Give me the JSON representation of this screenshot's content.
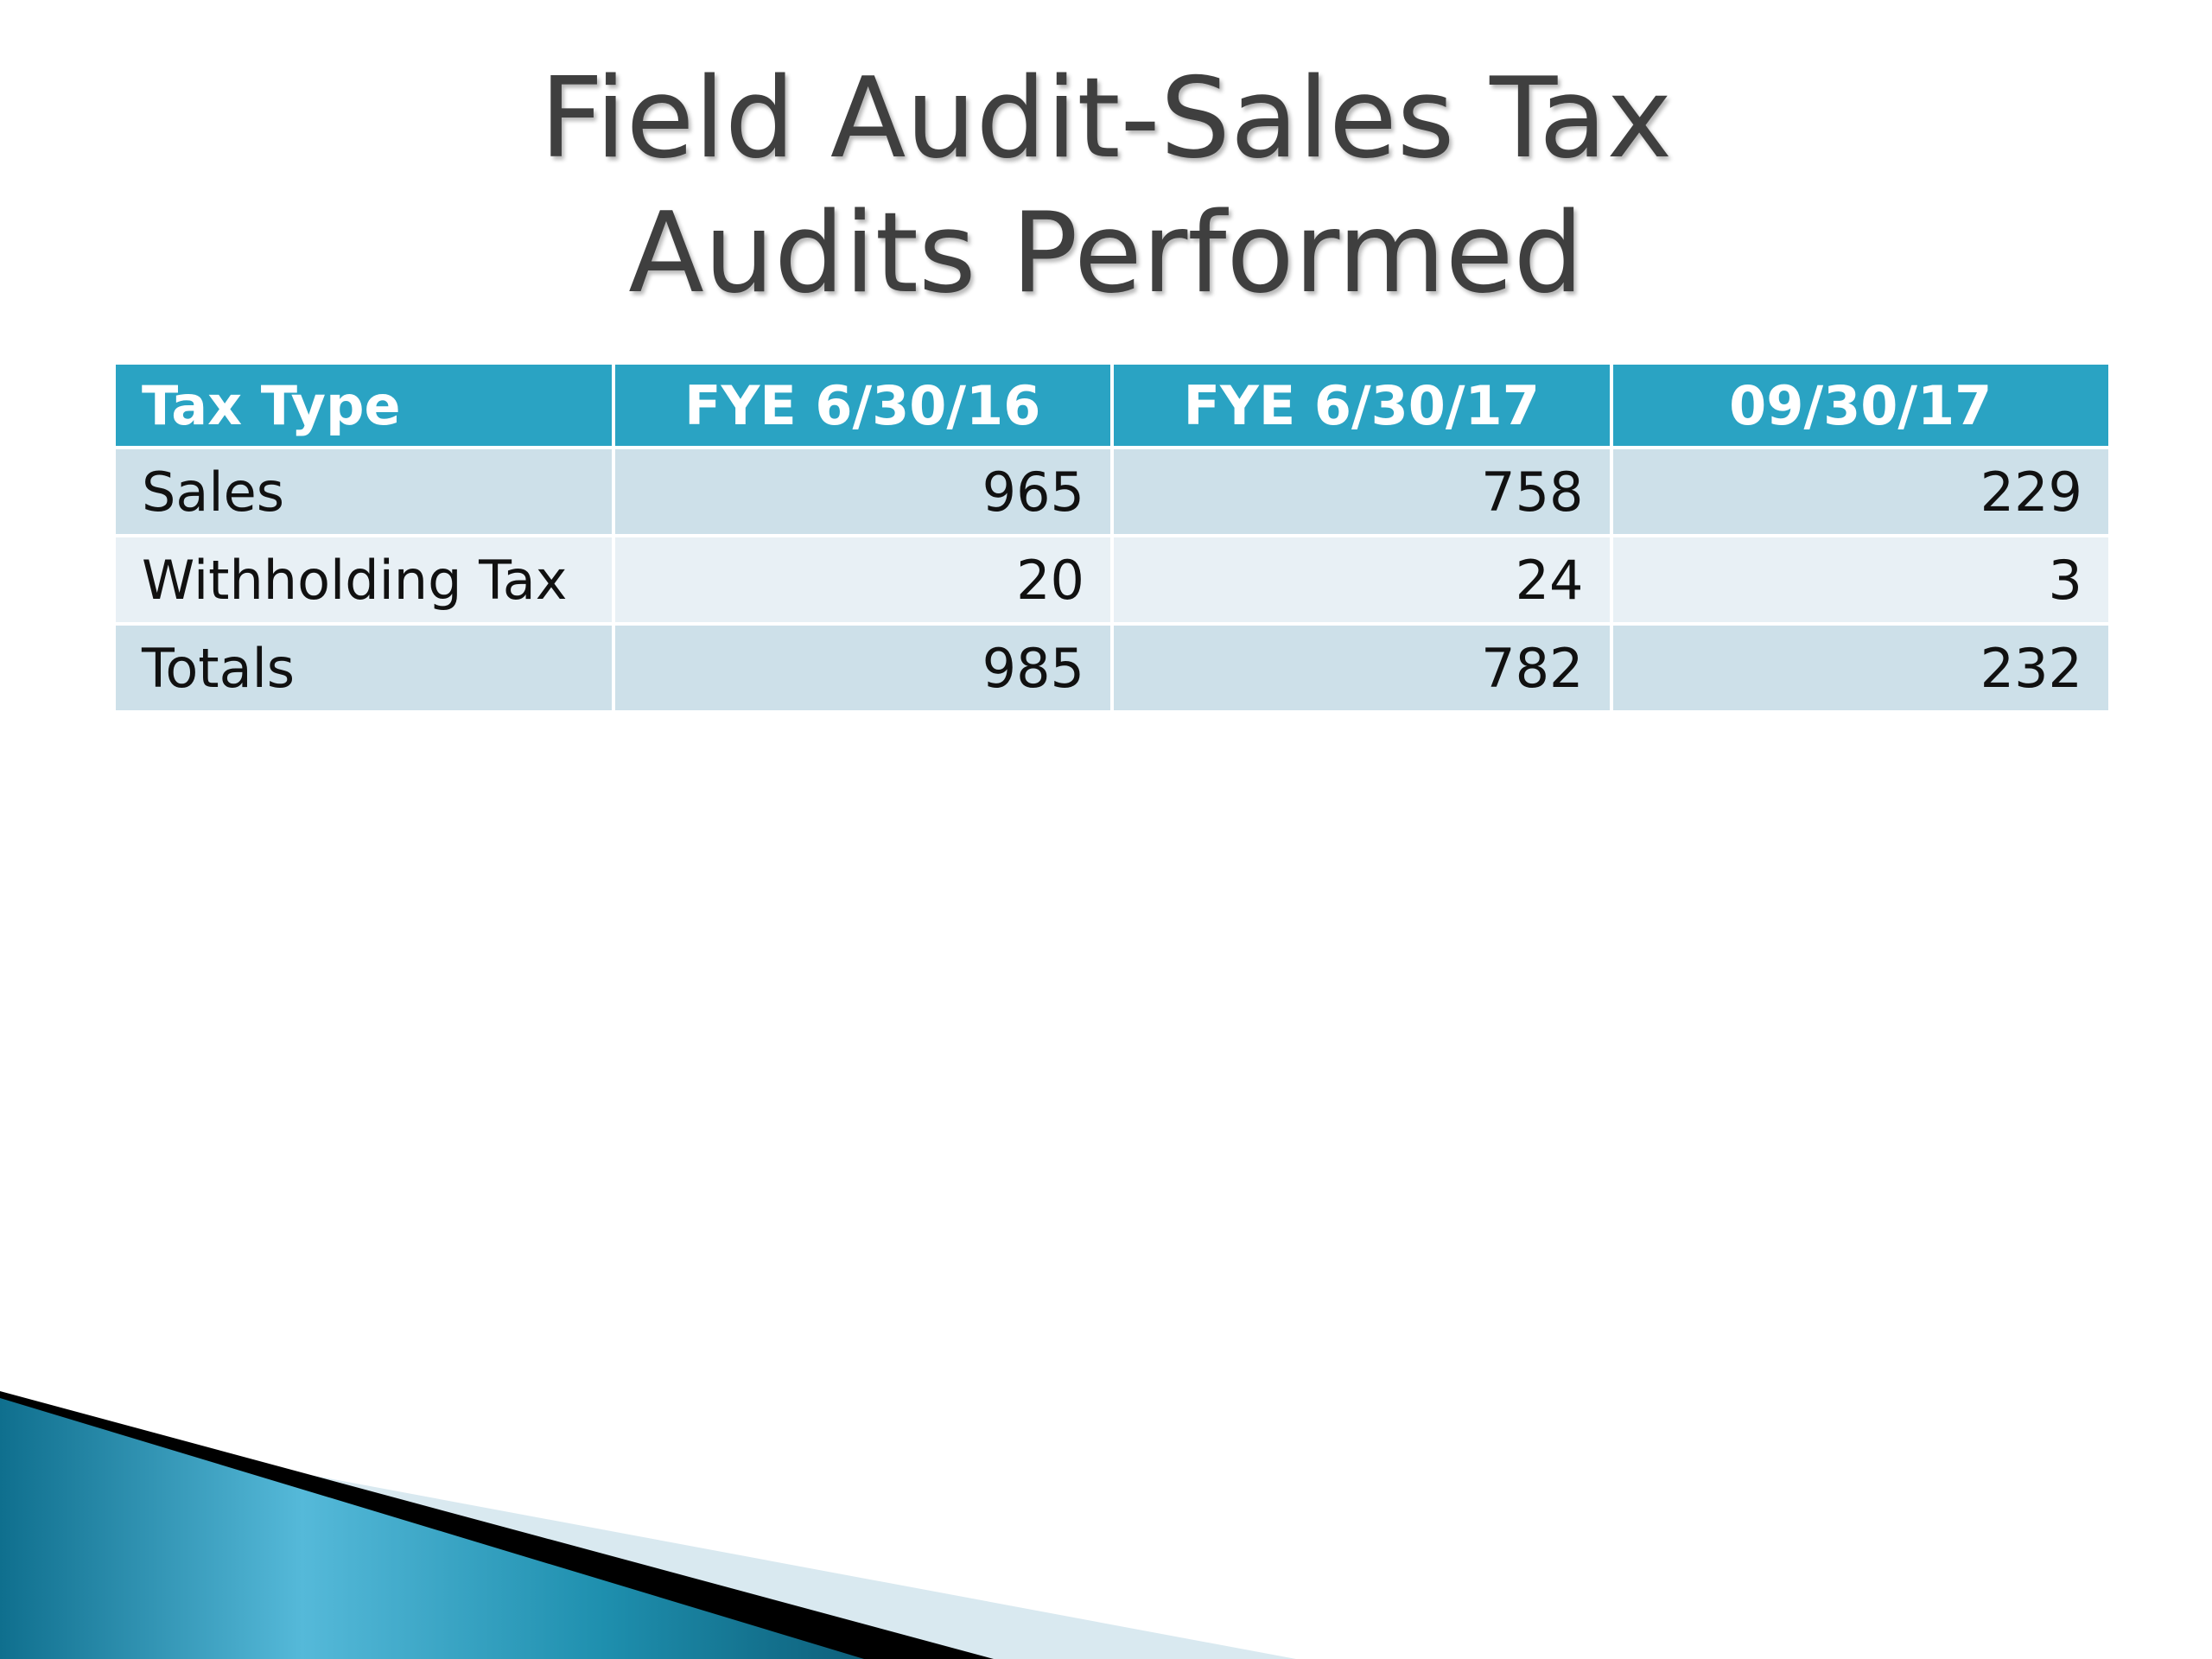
{
  "slide": {
    "title_line1": "Field Audit-Sales Tax",
    "title_line2": "Audits Performed"
  },
  "table": {
    "headers": [
      "Tax Type",
      "FYE 6/30/16",
      "FYE 6/30/17",
      "09/30/17"
    ],
    "rows": [
      {
        "label": "Sales",
        "values": [
          "965",
          "758",
          "229"
        ]
      },
      {
        "label": "Withholding Tax",
        "values": [
          "20",
          "24",
          "3"
        ]
      },
      {
        "label": "Totals",
        "values": [
          "985",
          "782",
          "232"
        ]
      }
    ]
  },
  "colors": {
    "header_background": "#2aa3c3",
    "row_dark": "#cde0e9",
    "row_light": "#e8f0f5",
    "accent_teal": "#1e8fae",
    "accent_black": "#000000",
    "title_text": "#3f3f3f"
  }
}
